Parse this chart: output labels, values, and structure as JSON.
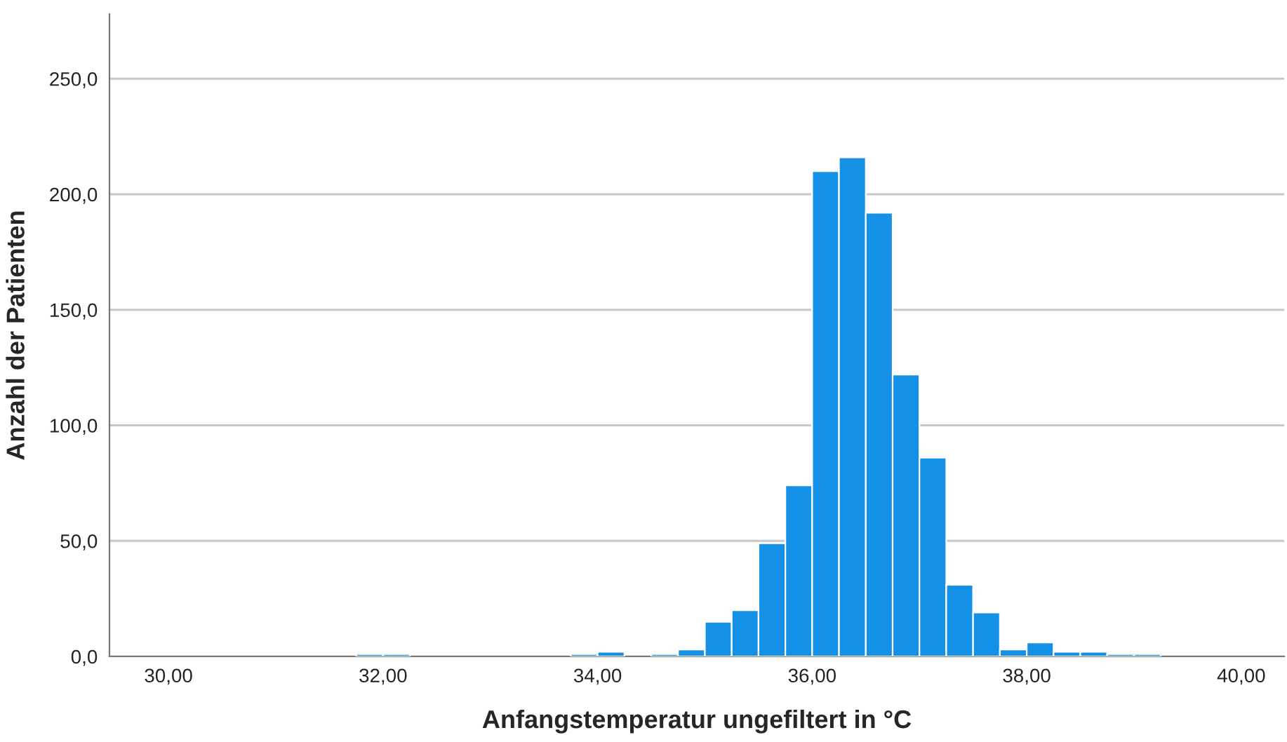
{
  "chart_data": {
    "type": "histogram",
    "xlabel": "Anfangstemperatur ungefiltert in °C",
    "ylabel": "Anzahl der Patienten",
    "bins": [
      31.75,
      32.0,
      32.25,
      32.5,
      32.75,
      33.0,
      33.25,
      33.5,
      33.75,
      34.0,
      34.25,
      34.5,
      34.75,
      35.0,
      35.25,
      35.5,
      35.75,
      36.0,
      36.25,
      36.5,
      36.75,
      37.0,
      37.25,
      37.5,
      37.75,
      38.0,
      38.25,
      38.5,
      38.75,
      39.0,
      39.25
    ],
    "values": [
      1,
      1,
      0,
      0,
      0,
      0,
      0,
      0,
      1,
      2,
      0,
      1,
      3,
      15,
      20,
      49,
      74,
      210,
      216,
      192,
      122,
      86,
      31,
      19,
      3,
      6,
      2,
      2,
      1,
      1
    ],
    "color": "#1490e6",
    "xlim": [
      29.45,
      40.4
    ],
    "ylim": [
      0,
      278
    ],
    "xticks": [
      {
        "value": 30,
        "label": "30,00"
      },
      {
        "value": 32,
        "label": "32,00"
      },
      {
        "value": 34,
        "label": "34,00"
      },
      {
        "value": 36,
        "label": "36,00"
      },
      {
        "value": 38,
        "label": "38,00"
      },
      {
        "value": 40,
        "label": "40,00"
      }
    ],
    "yticks": [
      {
        "value": 0,
        "label": "0,0"
      },
      {
        "value": 50,
        "label": "50,0"
      },
      {
        "value": 100,
        "label": "100,0"
      },
      {
        "value": 150,
        "label": "150,0"
      },
      {
        "value": 200,
        "label": "200,0"
      },
      {
        "value": 250,
        "label": "250,0"
      }
    ],
    "grid": "y"
  }
}
